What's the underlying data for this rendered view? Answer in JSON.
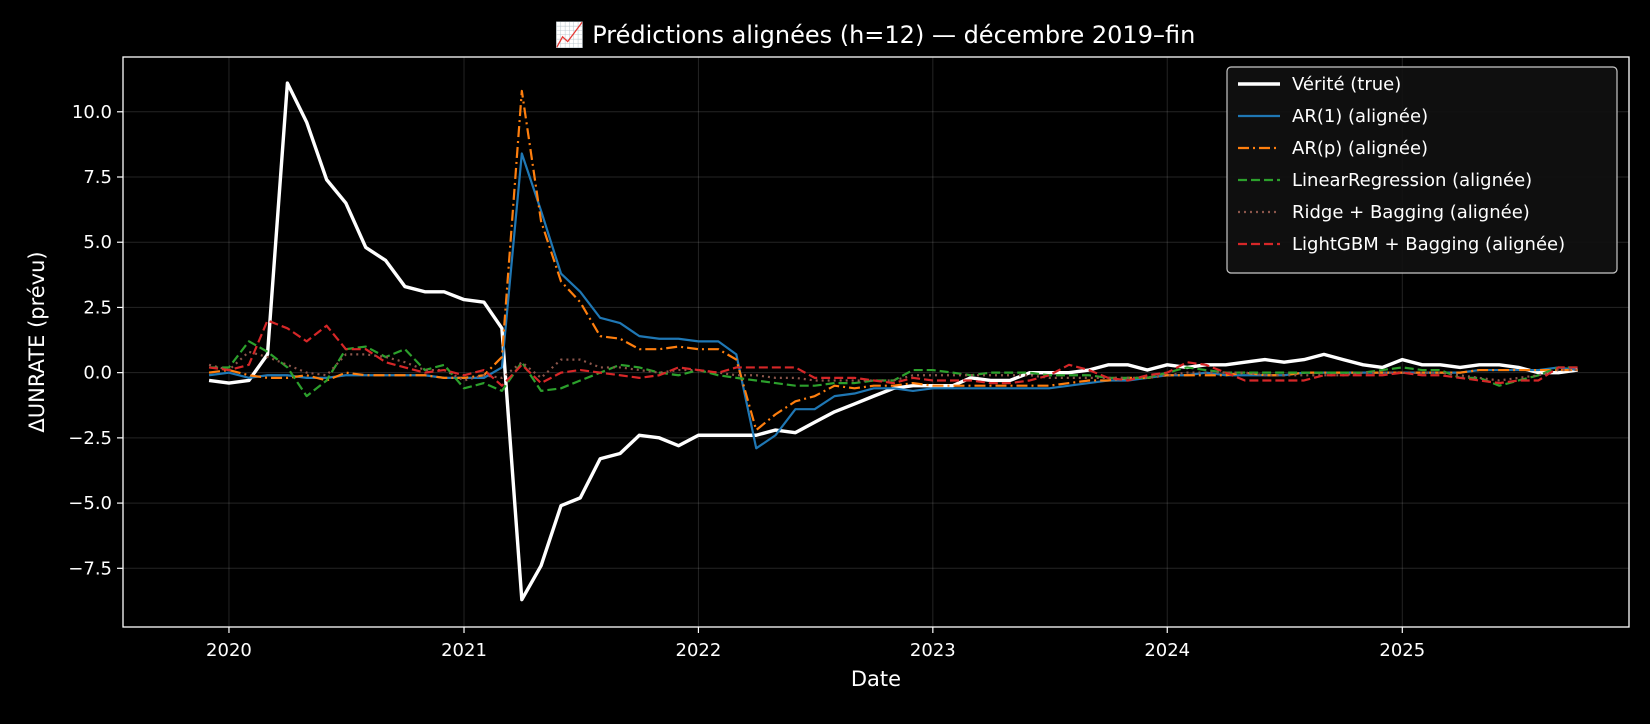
{
  "chart_data": {
    "type": "line",
    "title": "📈 Prédictions alignées (h=12) — décembre 2019–fin",
    "xlabel": "Date",
    "ylabel": "ΔUNRATE (prévu)",
    "xlim": [
      "2019-07-20",
      "2025-12-20"
    ],
    "ylim": [
      -9.75,
      12.1
    ],
    "x_ticks": [
      {
        "value": "2020-01-01",
        "label": "2020"
      },
      {
        "value": "2021-01-01",
        "label": "2021"
      },
      {
        "value": "2022-01-01",
        "label": "2022"
      },
      {
        "value": "2023-01-01",
        "label": "2023"
      },
      {
        "value": "2024-01-01",
        "label": "2024"
      },
      {
        "value": "2025-01-01",
        "label": "2025"
      }
    ],
    "y_ticks": [
      {
        "value": 10.0,
        "label": "10.0"
      },
      {
        "value": 7.5,
        "label": "7.5"
      },
      {
        "value": 5.0,
        "label": "5.0"
      },
      {
        "value": 2.5,
        "label": "2.5"
      },
      {
        "value": 0.0,
        "label": "0.0"
      },
      {
        "value": -2.5,
        "label": "−2.5"
      },
      {
        "value": -5.0,
        "label": "−5.0"
      },
      {
        "value": -7.5,
        "label": "−7.5"
      }
    ],
    "grid": true,
    "legend_position": "top-right",
    "x_start": "2019-12",
    "x_frequency": "monthly",
    "series": [
      {
        "name": "Vérité (true)",
        "color": "#ffffff",
        "style": "solid",
        "emphasis": "thick",
        "values": [
          -0.3,
          -0.4,
          -0.3,
          0.7,
          11.1,
          9.6,
          7.4,
          6.5,
          4.8,
          4.3,
          3.3,
          3.1,
          3.1,
          2.8,
          2.7,
          1.7,
          -8.7,
          -7.4,
          -5.1,
          -4.8,
          -3.3,
          -3.1,
          -2.4,
          -2.5,
          -2.8,
          -2.4,
          -2.4,
          -2.4,
          -2.4,
          -2.2,
          -2.3,
          -1.9,
          -1.5,
          -1.2,
          -0.9,
          -0.6,
          -0.5,
          -0.5,
          -0.5,
          -0.2,
          -0.3,
          -0.3,
          0.0,
          0.0,
          0.0,
          0.1,
          0.3,
          0.3,
          0.1,
          0.3,
          0.2,
          0.3,
          0.3,
          0.4,
          0.5,
          0.4,
          0.5,
          0.7,
          0.5,
          0.3,
          0.2,
          0.5,
          0.3,
          0.3,
          0.2,
          0.3,
          0.3,
          0.2,
          0.0,
          0.0,
          0.1
        ]
      },
      {
        "name": "AR(1) (alignée)",
        "color": "#1f77b4",
        "style": "solid",
        "values": [
          -0.1,
          0.0,
          -0.2,
          -0.1,
          -0.1,
          -0.2,
          -0.2,
          -0.1,
          -0.1,
          -0.1,
          -0.1,
          -0.1,
          -0.2,
          -0.2,
          -0.2,
          0.2,
          8.4,
          6.2,
          3.8,
          3.1,
          2.1,
          1.9,
          1.4,
          1.3,
          1.3,
          1.2,
          1.2,
          0.7,
          -2.9,
          -2.4,
          -1.4,
          -1.4,
          -0.9,
          -0.8,
          -0.6,
          -0.6,
          -0.7,
          -0.6,
          -0.6,
          -0.6,
          -0.6,
          -0.6,
          -0.6,
          -0.6,
          -0.5,
          -0.4,
          -0.3,
          -0.3,
          -0.2,
          -0.1,
          -0.1,
          0.0,
          -0.1,
          -0.1,
          -0.1,
          -0.1,
          0.0,
          0.0,
          0.0,
          0.0,
          0.0,
          0.0,
          0.0,
          0.0,
          0.0,
          0.1,
          0.1,
          0.1,
          0.1,
          0.2,
          0.1
        ]
      },
      {
        "name": "AR(p) (alignée)",
        "color": "#ff7f0e",
        "style": "dashdot",
        "values": [
          0.0,
          0.1,
          -0.1,
          -0.2,
          -0.2,
          -0.1,
          -0.3,
          0.0,
          -0.1,
          -0.1,
          -0.1,
          -0.1,
          -0.2,
          -0.2,
          -0.1,
          0.6,
          10.8,
          5.8,
          3.5,
          2.7,
          1.4,
          1.3,
          0.9,
          0.9,
          1.0,
          0.9,
          0.9,
          0.5,
          -2.2,
          -1.6,
          -1.1,
          -0.9,
          -0.5,
          -0.6,
          -0.5,
          -0.5,
          -0.4,
          -0.5,
          -0.5,
          -0.5,
          -0.5,
          -0.5,
          -0.5,
          -0.5,
          -0.4,
          -0.3,
          -0.3,
          -0.2,
          -0.2,
          -0.1,
          -0.1,
          -0.1,
          -0.1,
          0.0,
          -0.1,
          -0.1,
          0.0,
          0.0,
          0.0,
          0.0,
          0.0,
          0.0,
          0.0,
          0.0,
          0.0,
          0.1,
          0.1,
          0.1,
          0.1,
          0.1,
          0.1
        ]
      },
      {
        "name": "LinearRegression (alignée)",
        "color": "#2ca02c",
        "style": "dashed",
        "values": [
          0.2,
          0.2,
          1.2,
          0.8,
          0.2,
          -0.9,
          -0.3,
          0.9,
          1.0,
          0.6,
          0.9,
          0.1,
          0.3,
          -0.6,
          -0.4,
          -0.7,
          0.4,
          -0.7,
          -0.6,
          -0.3,
          0.0,
          0.3,
          0.2,
          0.0,
          -0.1,
          0.1,
          -0.1,
          -0.2,
          -0.3,
          -0.4,
          -0.5,
          -0.5,
          -0.4,
          -0.4,
          -0.3,
          -0.3,
          0.1,
          0.1,
          0.0,
          -0.1,
          0.0,
          0.0,
          0.0,
          -0.1,
          -0.1,
          -0.1,
          -0.2,
          -0.2,
          -0.2,
          0.0,
          0.2,
          0.1,
          0.0,
          0.0,
          0.0,
          0.0,
          0.0,
          0.0,
          0.0,
          0.0,
          0.1,
          0.2,
          0.1,
          0.1,
          -0.2,
          -0.2,
          -0.5,
          -0.3,
          -0.1,
          0.2,
          0.2
        ]
      },
      {
        "name": "Ridge + Bagging (alignée)",
        "color": "#8c564b",
        "style": "dotted",
        "values": [
          0.3,
          0.1,
          0.8,
          0.6,
          0.3,
          0.0,
          -0.1,
          0.7,
          0.7,
          0.6,
          0.4,
          0.1,
          0.1,
          -0.3,
          -0.1,
          -0.2,
          0.4,
          -0.2,
          0.5,
          0.5,
          0.2,
          0.2,
          0.1,
          0.0,
          0.1,
          0.1,
          0.0,
          -0.1,
          -0.1,
          -0.2,
          -0.2,
          -0.3,
          -0.3,
          -0.3,
          -0.3,
          -0.3,
          -0.1,
          -0.1,
          -0.1,
          -0.1,
          -0.1,
          -0.1,
          -0.1,
          -0.2,
          -0.2,
          -0.2,
          -0.2,
          -0.2,
          -0.2,
          -0.1,
          0.0,
          0.0,
          0.0,
          0.0,
          -0.1,
          -0.1,
          -0.1,
          -0.1,
          -0.1,
          0.0,
          0.0,
          0.0,
          0.0,
          0.0,
          -0.1,
          -0.2,
          -0.3,
          -0.2,
          -0.1,
          0.1,
          0.1
        ]
      },
      {
        "name": "LightGBM + Bagging (alignée)",
        "color": "#d62728",
        "style": "dashed",
        "values": [
          0.2,
          0.1,
          0.3,
          2.0,
          1.7,
          1.2,
          1.8,
          0.9,
          0.9,
          0.4,
          0.2,
          0.0,
          0.1,
          -0.1,
          0.1,
          -0.5,
          0.3,
          -0.4,
          0.0,
          0.1,
          0.0,
          -0.1,
          -0.2,
          -0.1,
          0.2,
          0.1,
          0.0,
          0.2,
          0.2,
          0.2,
          0.2,
          -0.2,
          -0.2,
          -0.2,
          -0.3,
          -0.4,
          -0.2,
          -0.3,
          -0.3,
          -0.3,
          -0.4,
          -0.4,
          -0.3,
          -0.1,
          0.3,
          0.1,
          -0.2,
          -0.3,
          -0.1,
          0.0,
          0.4,
          0.3,
          0.0,
          -0.3,
          -0.3,
          -0.3,
          -0.3,
          -0.1,
          -0.1,
          -0.1,
          -0.1,
          0.0,
          -0.1,
          -0.1,
          -0.2,
          -0.3,
          -0.4,
          -0.3,
          -0.3,
          0.2,
          0.2
        ]
      }
    ]
  }
}
